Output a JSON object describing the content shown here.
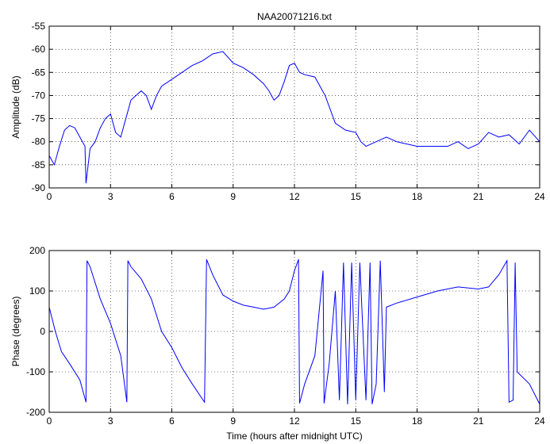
{
  "chart_data": [
    {
      "type": "line",
      "title": "NAA20071216.txt",
      "ylabel": "Amplitude (dB)",
      "color": "#0000ff",
      "grid": true,
      "xlim": [
        0,
        24
      ],
      "xticks": [
        0,
        3,
        6,
        9,
        12,
        15,
        18,
        21,
        24
      ],
      "ylim": [
        -90,
        -55
      ],
      "yticks": [
        -90,
        -85,
        -80,
        -75,
        -70,
        -65,
        -60,
        -55
      ],
      "x": [
        0,
        0.25,
        0.5,
        0.75,
        1.0,
        1.25,
        1.5,
        1.75,
        1.8,
        2.0,
        2.25,
        2.5,
        2.75,
        3.0,
        3.25,
        3.5,
        3.75,
        4.0,
        4.25,
        4.5,
        4.75,
        5.0,
        5.25,
        5.5,
        6.0,
        6.5,
        7.0,
        7.5,
        8.0,
        8.5,
        9.0,
        9.5,
        10.0,
        10.5,
        10.75,
        11.0,
        11.25,
        11.5,
        11.75,
        12.0,
        12.25,
        12.5,
        13.0,
        13.5,
        14.0,
        14.5,
        15.0,
        15.25,
        15.5,
        16.0,
        16.5,
        17.0,
        17.5,
        18.0,
        19.0,
        19.5,
        20.0,
        20.5,
        21.0,
        21.5,
        22.0,
        22.5,
        23.0,
        23.5,
        24
      ],
      "values": [
        -83,
        -85,
        -81,
        -77.5,
        -76.5,
        -77,
        -79,
        -81,
        -89,
        -81.5,
        -80,
        -77,
        -75,
        -74,
        -78,
        -79,
        -75,
        -71,
        -70,
        -69,
        -70,
        -73,
        -70,
        -68,
        -66.5,
        -65,
        -63.5,
        -62.5,
        -61,
        -60.5,
        -63,
        -64,
        -65.5,
        -67.5,
        -69,
        -71,
        -70,
        -67,
        -63.5,
        -63,
        -65,
        -65.5,
        -66,
        -70,
        -76,
        -77.5,
        -78,
        -80,
        -81,
        -80,
        -79,
        -80,
        -80.5,
        -81,
        -81,
        -81,
        -80,
        -81.5,
        -80.5,
        -78,
        -79,
        -78.5,
        -80.5,
        -77.5,
        -80
      ]
    },
    {
      "type": "line",
      "xlabel": "Time (hours after midnight UTC)",
      "ylabel": "Phase (degrees)",
      "color": "#0000ff",
      "grid": true,
      "xlim": [
        0,
        24
      ],
      "xticks": [
        0,
        3,
        6,
        9,
        12,
        15,
        18,
        21,
        24
      ],
      "ylim": [
        -200,
        200
      ],
      "yticks": [
        -200,
        -100,
        0,
        100,
        200
      ],
      "x": [
        0,
        0.3,
        0.6,
        1.0,
        1.5,
        1.8,
        1.85,
        2.0,
        2.5,
        3.0,
        3.5,
        3.8,
        3.85,
        4.0,
        4.5,
        5.0,
        5.5,
        6.0,
        6.5,
        7.0,
        7.6,
        7.7,
        8.0,
        8.5,
        9.0,
        9.5,
        10.0,
        10.5,
        11.0,
        11.5,
        11.75,
        12.0,
        12.2,
        12.25,
        12.5,
        13.0,
        13.4,
        13.45,
        13.7,
        14.0,
        14.2,
        14.4,
        14.6,
        14.8,
        15.0,
        15.2,
        15.5,
        15.7,
        15.8,
        16.0,
        16.2,
        16.4,
        16.5,
        17.0,
        18.0,
        19.0,
        20.0,
        21.0,
        21.5,
        22.0,
        22.4,
        22.5,
        22.7,
        22.8,
        22.9,
        23.5,
        24
      ],
      "values": [
        60,
        0,
        -50,
        -80,
        -120,
        -175,
        175,
        160,
        80,
        20,
        -60,
        -175,
        175,
        160,
        130,
        80,
        0,
        -40,
        -90,
        -130,
        -175,
        178,
        140,
        90,
        75,
        65,
        60,
        55,
        60,
        80,
        100,
        150,
        178,
        -178,
        -130,
        -60,
        150,
        -178,
        -80,
        100,
        -170,
        170,
        -180,
        170,
        -170,
        170,
        -170,
        170,
        -180,
        -130,
        175,
        -150,
        60,
        70,
        85,
        100,
        110,
        105,
        110,
        140,
        175,
        -175,
        -170,
        170,
        -100,
        -130,
        -180
      ]
    }
  ]
}
